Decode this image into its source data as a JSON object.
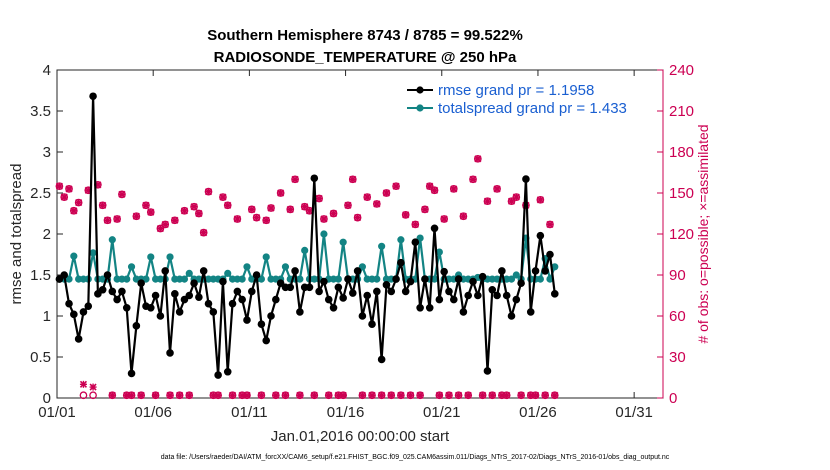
{
  "chart_data": {
    "type": "line",
    "title": "Southern Hemisphere 8743 / 8785 = 99.522%",
    "subtitle": "RADIOSONDE_TEMPERATURE @ 250 hPa",
    "xlabel": "Jan.01,2016 00:00:00 start",
    "ylabel": "rmse and totalspread",
    "ylabel_right": "# of obs: o=possible; ×=assimilated",
    "footer": "data file: /Users/raeder/DAI/ATM_forcXX/CAM6_setup/f.e21.FHIST_BGC.f09_025.CAM6assim.011/Diags_NTrS_2017-02/Diags_NTrS_2016-01/obs_diag_output.nc",
    "x_ticks": [
      {
        "day": 1,
        "label": "01/01"
      },
      {
        "day": 6,
        "label": "01/06"
      },
      {
        "day": 11,
        "label": "01/11"
      },
      {
        "day": 16,
        "label": "01/16"
      },
      {
        "day": 21,
        "label": "01/21"
      },
      {
        "day": 26,
        "label": "01/26"
      },
      {
        "day": 31,
        "label": "01/31"
      }
    ],
    "xlim": [
      1,
      32.5
    ],
    "ylim": [
      0,
      4
    ],
    "y_ticks": [
      "0",
      "0.5",
      "1",
      "1.5",
      "2",
      "2.5",
      "3",
      "3.5",
      "4"
    ],
    "ylim_right": [
      0,
      240
    ],
    "y_ticks_right": [
      "0",
      "30",
      "60",
      "90",
      "120",
      "150",
      "180",
      "210",
      "240"
    ],
    "grid": false,
    "legend_position": "top-right",
    "series": [
      {
        "name": "rmse grand pr = 1.1958",
        "color": "#000000",
        "axis": "left",
        "values": [
          1.45,
          1.5,
          1.15,
          1.02,
          0.72,
          1.05,
          1.12,
          3.68,
          1.27,
          1.32,
          1.5,
          1.3,
          1.2,
          1.3,
          1.1,
          0.3,
          0.88,
          1.4,
          1.12,
          1.1,
          1.25,
          1.0,
          1.55,
          0.55,
          1.27,
          1.05,
          1.2,
          1.25,
          1.4,
          1.23,
          1.55,
          1.15,
          1.05,
          0.28,
          1.42,
          0.32,
          1.15,
          1.3,
          1.2,
          0.95,
          1.3,
          1.5,
          0.9,
          0.7,
          1.0,
          1.2,
          1.4,
          1.35,
          1.35,
          1.55,
          1.05,
          1.35,
          1.35,
          2.68,
          1.3,
          1.42,
          1.2,
          1.1,
          1.35,
          1.22,
          1.45,
          1.28,
          1.55,
          1.0,
          1.25,
          0.9,
          1.3,
          0.47,
          1.38,
          1.3,
          1.45,
          1.65,
          1.3,
          1.42,
          1.9,
          1.1,
          1.45,
          1.1,
          2.07,
          1.2,
          1.54,
          1.3,
          1.2,
          1.45,
          1.05,
          1.25,
          1.42,
          1.25,
          1.48,
          0.33,
          1.32,
          1.25,
          1.55,
          1.25,
          1.0,
          1.2,
          1.4,
          2.67,
          1.05,
          1.55,
          1.98,
          1.55,
          1.75,
          1.27
        ],
        "label_shown": true
      },
      {
        "name": "totalspread grand pr = 1.433",
        "color": "#138484",
        "axis": "left",
        "values": [
          1.45,
          1.45,
          1.45,
          1.73,
          1.45,
          1.45,
          1.45,
          1.77,
          1.45,
          1.45,
          1.45,
          1.93,
          1.45,
          1.45,
          1.45,
          1.6,
          1.45,
          1.45,
          1.45,
          1.72,
          1.45,
          1.45,
          1.45,
          1.72,
          1.45,
          1.45,
          1.45,
          1.52,
          1.45,
          1.45,
          1.45,
          1.45,
          1.45,
          1.45,
          1.45,
          1.52,
          1.45,
          1.45,
          1.45,
          1.6,
          1.45,
          1.45,
          1.45,
          1.72,
          1.45,
          1.45,
          1.45,
          1.6,
          1.45,
          1.45,
          1.45,
          1.8,
          1.45,
          1.45,
          1.45,
          2.0,
          1.45,
          1.45,
          1.45,
          1.9,
          1.45,
          1.45,
          1.45,
          1.6,
          1.45,
          1.45,
          1.45,
          1.85,
          1.45,
          1.45,
          1.45,
          1.93,
          1.45,
          1.45,
          1.45,
          1.95,
          1.45,
          1.45,
          1.45,
          1.78,
          1.45,
          1.45,
          1.45,
          1.5,
          1.45,
          1.45,
          1.45,
          1.47,
          1.45,
          1.45,
          1.45,
          1.45,
          1.45,
          1.45,
          1.45,
          1.5,
          1.45,
          1.95,
          1.45,
          1.45,
          1.45,
          1.7,
          1.45,
          1.6
        ],
        "label_shown": true
      },
      {
        "name": "obs possible",
        "color": "#cc0052",
        "axis": "right",
        "marker": "circle",
        "values": [
          155,
          147,
          153,
          137,
          143,
          2,
          152,
          2,
          156,
          141,
          130,
          2,
          131,
          149,
          2,
          2,
          133,
          2,
          141,
          136,
          2,
          124,
          127,
          2,
          130,
          2,
          137,
          2,
          140,
          135,
          121,
          151,
          2,
          2,
          147,
          141,
          2,
          131,
          2,
          2,
          138,
          132,
          2,
          130,
          139,
          2,
          150,
          2,
          138,
          160,
          2,
          140,
          137,
          2,
          146,
          131,
          2,
          135,
          2,
          2,
          141,
          160,
          132,
          2,
          147,
          2,
          142,
          2,
          150,
          2,
          155,
          2,
          134,
          2,
          127,
          2,
          138,
          155,
          152,
          2,
          131,
          2,
          153,
          2,
          133,
          2,
          160,
          175,
          2,
          144,
          2,
          153,
          2,
          2,
          144,
          147,
          2,
          141,
          2,
          2,
          145,
          2,
          127,
          2
        ],
        "label_shown": false
      },
      {
        "name": "obs assimilated",
        "color": "#cc0052",
        "axis": "right",
        "marker": "x",
        "values": [
          155,
          147,
          153,
          137,
          143,
          10,
          152,
          8,
          156,
          141,
          130,
          2,
          131,
          149,
          2,
          2,
          133,
          2,
          141,
          136,
          2,
          124,
          127,
          2,
          130,
          2,
          137,
          2,
          140,
          135,
          121,
          151,
          2,
          2,
          147,
          141,
          2,
          131,
          2,
          2,
          138,
          132,
          2,
          130,
          139,
          2,
          150,
          2,
          138,
          160,
          2,
          140,
          137,
          2,
          146,
          131,
          2,
          135,
          2,
          2,
          141,
          160,
          132,
          2,
          147,
          2,
          142,
          2,
          150,
          2,
          155,
          2,
          134,
          2,
          127,
          2,
          138,
          155,
          152,
          2,
          131,
          2,
          153,
          2,
          133,
          2,
          160,
          175,
          2,
          144,
          2,
          153,
          2,
          2,
          144,
          147,
          2,
          141,
          2,
          2,
          145,
          2,
          127,
          2
        ],
        "label_shown": false
      }
    ]
  }
}
